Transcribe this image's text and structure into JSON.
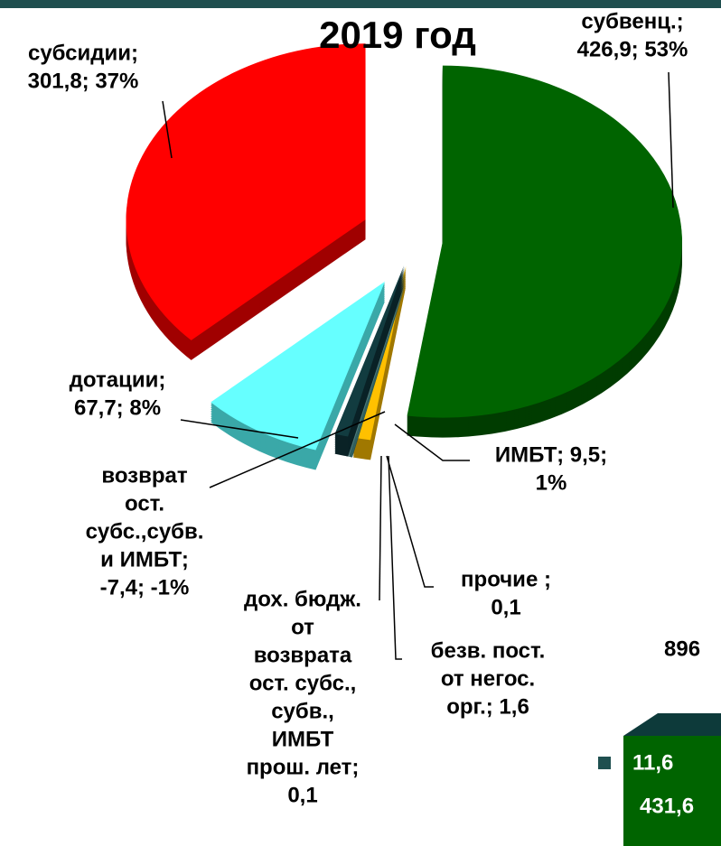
{
  "chart_data": {
    "type": "pie3d",
    "title": "2019 год",
    "categories": [
      "субвенц.",
      "ИМБТ",
      "прочие",
      "безв. пост. от негос. орг.",
      "дох. бюдж. от возврата ост. субс., субв., ИМБТ прош. лет",
      "возврат ост. субс.,субв. и ИМБТ",
      "дотации",
      "субсидии"
    ],
    "values": [
      426.9,
      9.5,
      0.1,
      1.6,
      0.1,
      -7.4,
      67.7,
      301.8
    ],
    "labels": [
      [
        "субвенц.;",
        "426,9; 53%"
      ],
      [
        "ИМБТ; 9,5;",
        "1%"
      ],
      [
        "прочие ;",
        "0,1"
      ],
      [
        "безв. пост.",
        "от негос.",
        "орг.; 1,6"
      ],
      [
        "дох. бюдж.",
        "от",
        "возврата",
        "ост. субс.,",
        "субв.,",
        "ИМБТ",
        "прош. лет;",
        "0,1"
      ],
      [
        "возврат",
        "ост.",
        "субс.,субв.",
        "и ИМБТ;",
        "-7,4; -1%"
      ],
      [
        "дотации;",
        "67,7; 8%"
      ],
      [
        "субсидии;",
        "301,8; 37%"
      ]
    ],
    "colors": [
      "#006400",
      "#ffc000",
      "#2e6b6b",
      "#4f8f8f",
      "#7fb0b0",
      "#123c40",
      "#66ffff",
      "#ff0000"
    ],
    "side_colors": [
      "#003c00",
      "#a07800",
      "#1a4545",
      "#2f5f5f",
      "#507a7a",
      "#0a2226",
      "#3aa8a8",
      "#a00000"
    ],
    "side_texts": {
      "total": "896",
      "values": [
        11.6,
        431.6
      ],
      "value_labels": [
        "11,6",
        "431,6"
      ]
    }
  }
}
